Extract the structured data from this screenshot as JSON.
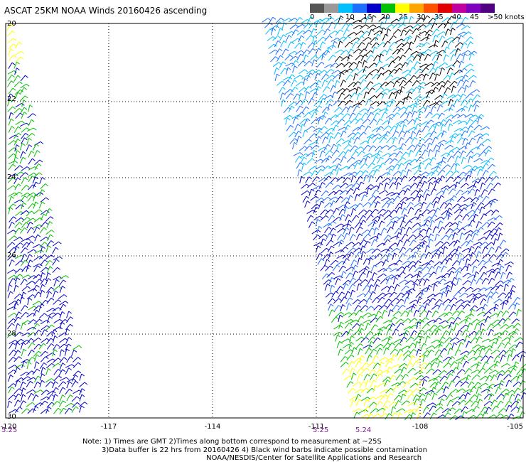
{
  "title": "ASCAT 25KM NOAA Winds 20160426 ascending",
  "legend": {
    "labels": [
      "0",
      "5",
      "10",
      "15",
      "20",
      "25",
      "30",
      "35",
      "40",
      "45",
      ">50 knots"
    ],
    "colors": [
      "#555555",
      "#999999",
      "#00bfff",
      "#1e6fff",
      "#0000c8",
      "#00c000",
      "#ffff00",
      "#ffa500",
      "#ff5000",
      "#e00000",
      "#c000a0",
      "#8000c0",
      "#500080"
    ]
  },
  "axes": {
    "x_ticks": [
      "-120",
      "-117",
      "-114",
      "-111",
      "-108",
      "-105"
    ],
    "y_ticks": [
      "20",
      "22",
      "24",
      "26",
      "28",
      "30"
    ]
  },
  "time_labels": [
    "5.25",
    "5.25",
    "5.24"
  ],
  "notes": [
    "Note: 1) Times are GMT 2)Times along bottom correspond to measurement at ~25S",
    "3)Data buffer is 22 hrs from 20160426 4) Black wind barbs indicate possible contamination",
    "NOAA/NESDIS/Center for Satellite Applications and Research"
  ]
}
